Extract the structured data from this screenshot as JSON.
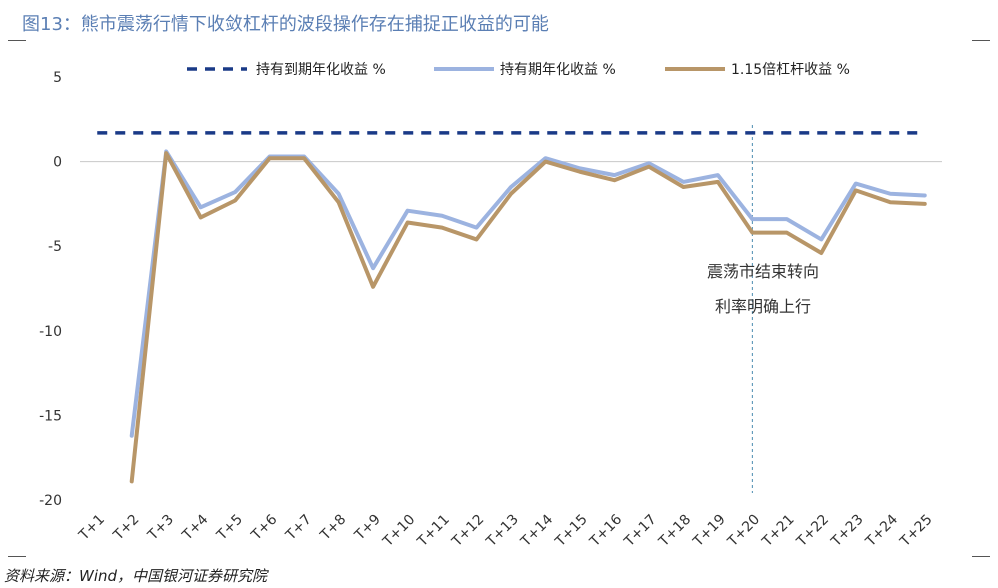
{
  "figure": {
    "title": "图13：熊市震荡行情下收敛杠杆的波段操作存在捕捉正收益的可能",
    "source": "资料来源：Wind，中国银河证券研究院"
  },
  "chart_data": {
    "type": "line",
    "categories": [
      "T+1",
      "T+2",
      "T+3",
      "T+4",
      "T+5",
      "T+6",
      "T+7",
      "T+8",
      "T+9",
      "T+10",
      "T+11",
      "T+12",
      "T+13",
      "T+14",
      "T+15",
      "T+16",
      "T+17",
      "T+18",
      "T+19",
      "T+20",
      "T+21",
      "T+22",
      "T+23",
      "T+24",
      "T+25"
    ],
    "ylim": [
      -20,
      5
    ],
    "yticks": [
      5,
      0,
      -5,
      -10,
      -15,
      -20
    ],
    "series": [
      {
        "name": "持有到期年化收益 %",
        "color": "#1a3a87",
        "style": "dashed",
        "values": [
          1.7,
          1.7,
          1.7,
          1.7,
          1.7,
          1.7,
          1.7,
          1.7,
          1.7,
          1.7,
          1.7,
          1.7,
          1.7,
          1.7,
          1.7,
          1.7,
          1.7,
          1.7,
          1.7,
          1.7,
          1.7,
          1.7,
          1.7,
          1.7,
          1.7
        ]
      },
      {
        "name": "持有期年化收益 %",
        "color": "#9cb3e0",
        "style": "solid",
        "values": [
          null,
          -16.2,
          0.6,
          -2.7,
          -1.8,
          0.3,
          0.3,
          -1.9,
          -6.3,
          -2.9,
          -3.2,
          -3.9,
          -1.5,
          0.2,
          -0.4,
          -0.8,
          -0.1,
          -1.2,
          -0.8,
          -3.4,
          -3.4,
          -4.6,
          -1.3,
          -1.9,
          -2.0
        ]
      },
      {
        "name": "1.15倍杠杆收益 %",
        "color": "#b89668",
        "style": "solid",
        "values": [
          null,
          -18.9,
          0.5,
          -3.3,
          -2.3,
          0.2,
          0.2,
          -2.4,
          -7.4,
          -3.6,
          -3.9,
          -4.6,
          -1.9,
          0.0,
          -0.6,
          -1.1,
          -0.3,
          -1.5,
          -1.2,
          -4.2,
          -4.2,
          -5.4,
          -1.7,
          -2.4,
          -2.5
        ]
      }
    ],
    "annotation": {
      "line1": "震荡市结束转向",
      "line2": "利率明确上行",
      "at_category": "T+20"
    }
  }
}
